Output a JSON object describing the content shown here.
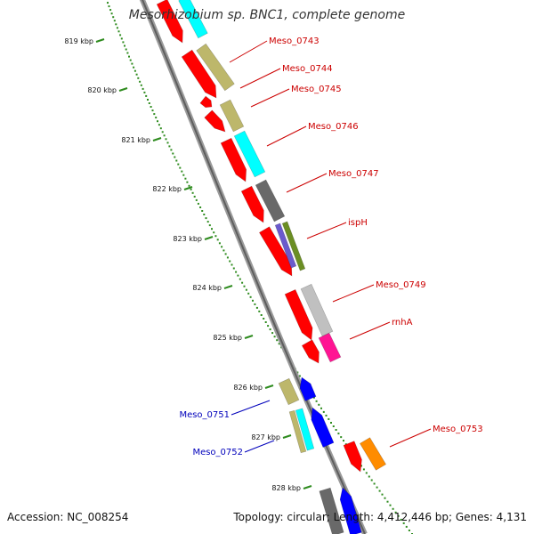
{
  "title": "Mesorhizobium sp. BNC1, complete genome",
  "footer": {
    "accession": "Accession: NC_008254",
    "stats": "Topology: circular; Length: 4,412,446 bp; Genes: 4,131"
  },
  "colors": {
    "forward_label": "#cc0000",
    "reverse_label": "#0000bb",
    "backbone": "#7a7a7a",
    "ruler": "#2e8b1e",
    "red": "#ff0000",
    "khaki": "#bdb76b",
    "cyan": "#00ffff",
    "gray": "#696969",
    "olive": "#6b8e23",
    "slate": "#6a5acd",
    "silver": "#c0c0c0",
    "pink": "#ff1493",
    "blue": "#0000ff",
    "orange": "#ff8c00"
  },
  "ruler_ticks": [
    {
      "label": "819 kbp",
      "kbp": 819
    },
    {
      "label": "820 kbp",
      "kbp": 820
    },
    {
      "label": "821 kbp",
      "kbp": 821
    },
    {
      "label": "822 kbp",
      "kbp": 822
    },
    {
      "label": "823 kbp",
      "kbp": 823
    },
    {
      "label": "824 kbp",
      "kbp": 824
    },
    {
      "label": "825 kbp",
      "kbp": 825
    },
    {
      "label": "826 kbp",
      "kbp": 826
    },
    {
      "label": "827 kbp",
      "kbp": 827
    },
    {
      "label": "828 kbp",
      "kbp": 828
    }
  ],
  "gene_labels": [
    {
      "name": "Meso_0743",
      "strand": "forward"
    },
    {
      "name": "Meso_0744",
      "strand": "forward"
    },
    {
      "name": "Meso_0745",
      "strand": "forward"
    },
    {
      "name": "Meso_0746",
      "strand": "forward"
    },
    {
      "name": "Meso_0747",
      "strand": "forward"
    },
    {
      "name": "ispH",
      "strand": "forward"
    },
    {
      "name": "Meso_0749",
      "strand": "forward"
    },
    {
      "name": "rnhA",
      "strand": "forward"
    },
    {
      "name": "Meso_0751",
      "strand": "reverse"
    },
    {
      "name": "Meso_0752",
      "strand": "reverse"
    },
    {
      "name": "Meso_0753",
      "strand": "forward"
    }
  ]
}
